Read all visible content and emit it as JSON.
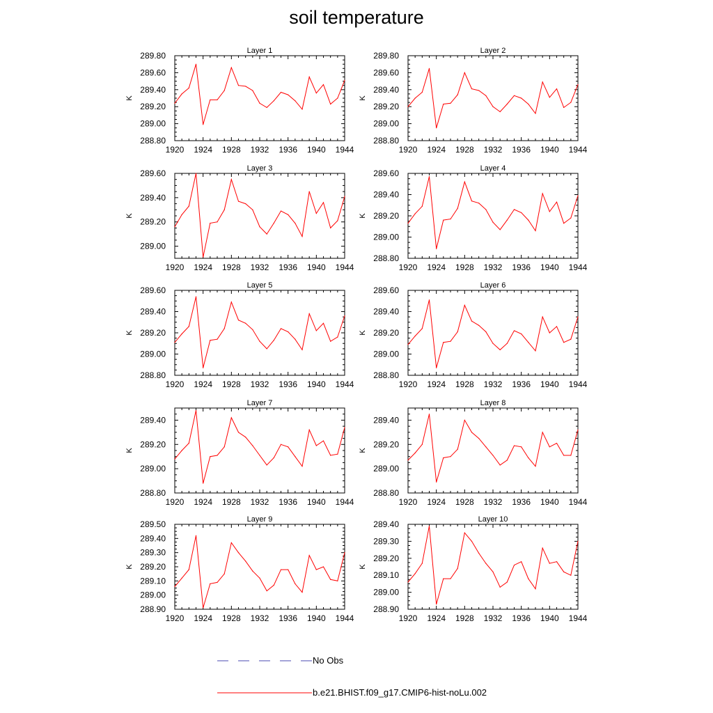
{
  "title": "soil temperature",
  "colors": {
    "series": "#ff0000",
    "no_obs": "#4a4ab0",
    "axis": "#000000"
  },
  "legend": {
    "items": [
      {
        "label": "No Obs",
        "style": "dashed",
        "color": "#4a4ab0"
      },
      {
        "label": "b.e21.BHIST.f09_g17.CMIP6-hist-noLu.002",
        "style": "solid",
        "color": "#ff0000"
      }
    ]
  },
  "chart_data": [
    {
      "type": "line",
      "title": "Layer 1",
      "ylabel": "K",
      "xlim": [
        1920,
        1944
      ],
      "xticks": [
        1920,
        1924,
        1928,
        1932,
        1936,
        1940,
        1944
      ],
      "ylim": [
        288.8,
        289.8
      ],
      "yticks": [
        288.8,
        289.0,
        289.2,
        289.4,
        289.6,
        289.8
      ],
      "ydecimals": 2,
      "series": [
        {
          "name": "b.e21.BHIST.f09_g17.CMIP6-hist-noLu.002",
          "x": [
            1920,
            1921,
            1922,
            1923,
            1924,
            1925,
            1926,
            1927,
            1928,
            1929,
            1930,
            1931,
            1932,
            1933,
            1934,
            1935,
            1936,
            1937,
            1938,
            1939,
            1940,
            1941,
            1942,
            1943,
            1944
          ],
          "y": [
            289.24,
            289.35,
            289.42,
            289.7,
            288.99,
            289.28,
            289.28,
            289.39,
            289.66,
            289.45,
            289.44,
            289.39,
            289.24,
            289.19,
            289.27,
            289.37,
            289.34,
            289.27,
            289.17,
            289.55,
            289.36,
            289.46,
            289.23,
            289.3,
            289.51
          ]
        }
      ]
    },
    {
      "type": "line",
      "title": "Layer 2",
      "ylabel": "K",
      "xlim": [
        1920,
        1944
      ],
      "xticks": [
        1920,
        1924,
        1928,
        1932,
        1936,
        1940,
        1944
      ],
      "ylim": [
        288.8,
        289.8
      ],
      "yticks": [
        288.8,
        289.0,
        289.2,
        289.4,
        289.6,
        289.8
      ],
      "ydecimals": 2,
      "series": [
        {
          "name": "b.e21.BHIST.f09_g17.CMIP6-hist-noLu.002",
          "x": [
            1920,
            1921,
            1922,
            1923,
            1924,
            1925,
            1926,
            1927,
            1928,
            1929,
            1930,
            1931,
            1932,
            1933,
            1934,
            1935,
            1936,
            1937,
            1938,
            1939,
            1940,
            1941,
            1942,
            1943,
            1944
          ],
          "y": [
            289.2,
            289.3,
            289.37,
            289.65,
            288.95,
            289.23,
            289.24,
            289.34,
            289.6,
            289.41,
            289.39,
            289.33,
            289.2,
            289.14,
            289.23,
            289.33,
            289.3,
            289.23,
            289.12,
            289.49,
            289.31,
            289.41,
            289.19,
            289.25,
            289.46
          ]
        }
      ]
    },
    {
      "type": "line",
      "title": "Layer 3",
      "ylabel": "K",
      "xlim": [
        1920,
        1944
      ],
      "xticks": [
        1920,
        1924,
        1928,
        1932,
        1936,
        1940,
        1944
      ],
      "ylim": [
        288.9,
        289.6
      ],
      "yticks": [
        289.0,
        289.2,
        289.4,
        289.6
      ],
      "ydecimals": 2,
      "series": [
        {
          "name": "b.e21.BHIST.f09_g17.CMIP6-hist-noLu.002",
          "x": [
            1920,
            1921,
            1922,
            1923,
            1924,
            1925,
            1926,
            1927,
            1928,
            1929,
            1930,
            1931,
            1932,
            1933,
            1934,
            1935,
            1936,
            1937,
            1938,
            1939,
            1940,
            1941,
            1942,
            1943,
            1944
          ],
          "y": [
            289.16,
            289.26,
            289.33,
            289.6,
            288.91,
            289.19,
            289.2,
            289.3,
            289.55,
            289.37,
            289.35,
            289.3,
            289.16,
            289.1,
            289.19,
            289.29,
            289.26,
            289.19,
            289.08,
            289.45,
            289.27,
            289.36,
            289.15,
            289.21,
            289.41
          ]
        }
      ]
    },
    {
      "type": "line",
      "title": "Layer 4",
      "ylabel": "K",
      "xlim": [
        1920,
        1944
      ],
      "xticks": [
        1920,
        1924,
        1928,
        1932,
        1936,
        1940,
        1944
      ],
      "ylim": [
        288.8,
        289.6
      ],
      "yticks": [
        288.8,
        289.0,
        289.2,
        289.4,
        289.6
      ],
      "ydecimals": 2,
      "series": [
        {
          "name": "b.e21.BHIST.f09_g17.CMIP6-hist-noLu.002",
          "x": [
            1920,
            1921,
            1922,
            1923,
            1924,
            1925,
            1926,
            1927,
            1928,
            1929,
            1930,
            1931,
            1932,
            1933,
            1934,
            1935,
            1936,
            1937,
            1938,
            1939,
            1940,
            1941,
            1942,
            1943,
            1944
          ],
          "y": [
            289.13,
            289.22,
            289.29,
            289.57,
            288.89,
            289.16,
            289.17,
            289.27,
            289.52,
            289.34,
            289.32,
            289.26,
            289.14,
            289.07,
            289.16,
            289.26,
            289.23,
            289.16,
            289.06,
            289.41,
            289.24,
            289.33,
            289.13,
            289.18,
            289.39
          ]
        }
      ]
    },
    {
      "type": "line",
      "title": "Layer 5",
      "ylabel": "K",
      "xlim": [
        1920,
        1944
      ],
      "xticks": [
        1920,
        1924,
        1928,
        1932,
        1936,
        1940,
        1944
      ],
      "ylim": [
        288.8,
        289.6
      ],
      "yticks": [
        288.8,
        289.0,
        289.2,
        289.4,
        289.6
      ],
      "ydecimals": 2,
      "series": [
        {
          "name": "b.e21.BHIST.f09_g17.CMIP6-hist-noLu.002",
          "x": [
            1920,
            1921,
            1922,
            1923,
            1924,
            1925,
            1926,
            1927,
            1928,
            1929,
            1930,
            1931,
            1932,
            1933,
            1934,
            1935,
            1936,
            1937,
            1938,
            1939,
            1940,
            1941,
            1942,
            1943,
            1944
          ],
          "y": [
            289.11,
            289.19,
            289.26,
            289.54,
            288.87,
            289.13,
            289.14,
            289.24,
            289.49,
            289.32,
            289.29,
            289.23,
            289.12,
            289.05,
            289.13,
            289.24,
            289.21,
            289.14,
            289.04,
            289.38,
            289.22,
            289.29,
            289.12,
            289.16,
            289.36
          ]
        }
      ]
    },
    {
      "type": "line",
      "title": "Layer 6",
      "ylabel": "K",
      "xlim": [
        1920,
        1944
      ],
      "xticks": [
        1920,
        1924,
        1928,
        1932,
        1936,
        1940,
        1944
      ],
      "ylim": [
        288.8,
        289.6
      ],
      "yticks": [
        288.8,
        289.0,
        289.2,
        289.4,
        289.6
      ],
      "ydecimals": 2,
      "series": [
        {
          "name": "b.e21.BHIST.f09_g17.CMIP6-hist-noLu.002",
          "x": [
            1920,
            1921,
            1922,
            1923,
            1924,
            1925,
            1926,
            1927,
            1928,
            1929,
            1930,
            1931,
            1932,
            1933,
            1934,
            1935,
            1936,
            1937,
            1938,
            1939,
            1940,
            1941,
            1942,
            1943,
            1944
          ],
          "y": [
            289.09,
            289.17,
            289.24,
            289.51,
            288.87,
            289.11,
            289.12,
            289.21,
            289.46,
            289.31,
            289.27,
            289.21,
            289.1,
            289.04,
            289.1,
            289.22,
            289.19,
            289.11,
            289.03,
            289.35,
            289.2,
            289.26,
            289.11,
            289.14,
            289.35
          ]
        }
      ]
    },
    {
      "type": "line",
      "title": "Layer 7",
      "ylabel": "K",
      "xlim": [
        1920,
        1944
      ],
      "xticks": [
        1920,
        1924,
        1928,
        1932,
        1936,
        1940,
        1944
      ],
      "ylim": [
        288.8,
        289.5
      ],
      "yticks": [
        288.8,
        289.0,
        289.2,
        289.4
      ],
      "ydecimals": 2,
      "series": [
        {
          "name": "b.e21.BHIST.f09_g17.CMIP6-hist-noLu.002",
          "x": [
            1920,
            1921,
            1922,
            1923,
            1924,
            1925,
            1926,
            1927,
            1928,
            1929,
            1930,
            1931,
            1932,
            1933,
            1934,
            1935,
            1936,
            1937,
            1938,
            1939,
            1940,
            1941,
            1942,
            1943,
            1944
          ],
          "y": [
            289.08,
            289.15,
            289.21,
            289.48,
            288.88,
            289.1,
            289.11,
            289.18,
            289.42,
            289.3,
            289.26,
            289.19,
            289.11,
            289.03,
            289.09,
            289.2,
            289.18,
            289.1,
            289.02,
            289.32,
            289.19,
            289.23,
            289.11,
            289.12,
            289.34
          ]
        }
      ]
    },
    {
      "type": "line",
      "title": "Layer 8",
      "ylabel": "K",
      "xlim": [
        1920,
        1944
      ],
      "xticks": [
        1920,
        1924,
        1928,
        1932,
        1936,
        1940,
        1944
      ],
      "ylim": [
        288.8,
        289.5
      ],
      "yticks": [
        288.8,
        289.0,
        289.2,
        289.4
      ],
      "ydecimals": 2,
      "series": [
        {
          "name": "b.e21.BHIST.f09_g17.CMIP6-hist-noLu.002",
          "x": [
            1920,
            1921,
            1922,
            1923,
            1924,
            1925,
            1926,
            1927,
            1928,
            1929,
            1930,
            1931,
            1932,
            1933,
            1934,
            1935,
            1936,
            1937,
            1938,
            1939,
            1940,
            1941,
            1942,
            1943,
            1944
          ],
          "y": [
            289.07,
            289.13,
            289.2,
            289.45,
            288.89,
            289.09,
            289.1,
            289.16,
            289.4,
            289.3,
            289.25,
            289.18,
            289.11,
            289.03,
            289.07,
            289.19,
            289.18,
            289.09,
            289.02,
            289.3,
            289.18,
            289.21,
            289.11,
            289.11,
            289.32
          ]
        }
      ]
    },
    {
      "type": "line",
      "title": "Layer 9",
      "ylabel": "K",
      "xlim": [
        1920,
        1944
      ],
      "xticks": [
        1920,
        1924,
        1928,
        1932,
        1936,
        1940,
        1944
      ],
      "ylim": [
        288.9,
        289.5
      ],
      "yticks": [
        288.9,
        289.0,
        289.1,
        289.2,
        289.3,
        289.4,
        289.5
      ],
      "ydecimals": 2,
      "series": [
        {
          "name": "b.e21.BHIST.f09_g17.CMIP6-hist-noLu.002",
          "x": [
            1920,
            1921,
            1922,
            1923,
            1924,
            1925,
            1926,
            1927,
            1928,
            1929,
            1930,
            1931,
            1932,
            1933,
            1934,
            1935,
            1936,
            1937,
            1938,
            1939,
            1940,
            1941,
            1942,
            1943,
            1944
          ],
          "y": [
            289.06,
            289.12,
            289.18,
            289.42,
            288.91,
            289.08,
            289.09,
            289.15,
            289.37,
            289.3,
            289.24,
            289.17,
            289.12,
            289.03,
            289.07,
            289.18,
            289.18,
            289.08,
            289.02,
            289.28,
            289.18,
            289.2,
            289.11,
            289.1,
            289.3
          ]
        }
      ]
    },
    {
      "type": "line",
      "title": "Layer 10",
      "ylabel": "K",
      "xlim": [
        1920,
        1944
      ],
      "xticks": [
        1920,
        1924,
        1928,
        1932,
        1936,
        1940,
        1944
      ],
      "ylim": [
        288.9,
        289.4
      ],
      "yticks": [
        288.9,
        289.0,
        289.1,
        289.2,
        289.3,
        289.4
      ],
      "ydecimals": 2,
      "series": [
        {
          "name": "b.e21.BHIST.f09_g17.CMIP6-hist-noLu.002",
          "x": [
            1920,
            1921,
            1922,
            1923,
            1924,
            1925,
            1926,
            1927,
            1928,
            1929,
            1930,
            1931,
            1932,
            1933,
            1934,
            1935,
            1936,
            1937,
            1938,
            1939,
            1940,
            1941,
            1942,
            1943,
            1944
          ],
          "y": [
            289.06,
            289.11,
            289.17,
            289.39,
            288.93,
            289.08,
            289.08,
            289.14,
            289.35,
            289.3,
            289.23,
            289.17,
            289.12,
            289.03,
            289.06,
            289.16,
            289.18,
            289.08,
            289.02,
            289.26,
            289.17,
            289.18,
            289.12,
            289.1,
            289.3
          ]
        }
      ]
    }
  ]
}
